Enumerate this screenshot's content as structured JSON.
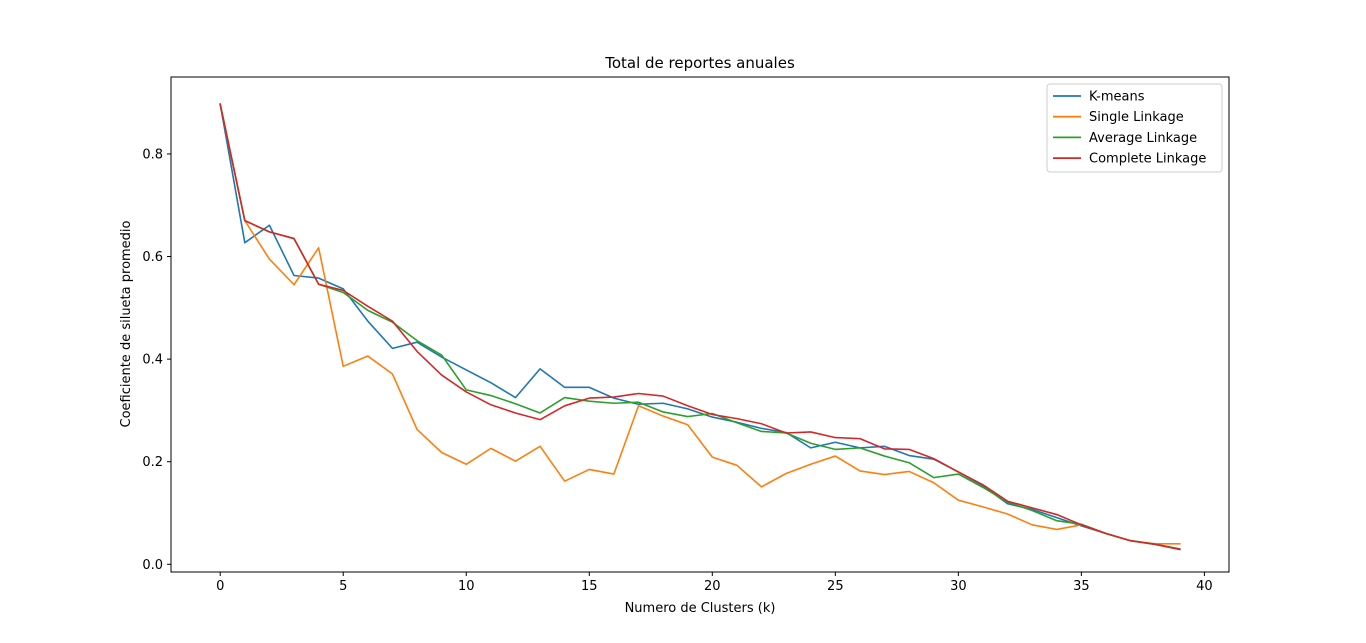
{
  "chart_data": {
    "type": "line",
    "title": "Total de reportes anuales",
    "xlabel": "Numero de Clusters (k)",
    "ylabel": "Coeficiente de silueta promedio",
    "xlim": [
      -2,
      41
    ],
    "ylim": [
      -0.015,
      0.95
    ],
    "xticks": [
      0,
      5,
      10,
      15,
      20,
      25,
      30,
      35,
      40
    ],
    "yticks": [
      0.0,
      0.2,
      0.4,
      0.6,
      0.8
    ],
    "xtick_labels": [
      "0",
      "5",
      "10",
      "15",
      "20",
      "25",
      "30",
      "35",
      "40"
    ],
    "ytick_labels": [
      "0.0",
      "0.2",
      "0.4",
      "0.6",
      "0.8"
    ],
    "legend_position": "top-right",
    "grid": false,
    "x": [
      0,
      1,
      2,
      3,
      4,
      5,
      6,
      7,
      8,
      9,
      10,
      11,
      12,
      13,
      14,
      15,
      16,
      17,
      18,
      19,
      20,
      21,
      22,
      23,
      24,
      25,
      26,
      27,
      28,
      29,
      30,
      31,
      32,
      33,
      34,
      35,
      36,
      37,
      38,
      39
    ],
    "series": [
      {
        "name": "K-means",
        "color": "#1f77b4",
        "values": [
          0.897,
          0.627,
          0.661,
          0.563,
          0.558,
          0.537,
          0.474,
          0.421,
          0.433,
          0.404,
          0.379,
          0.354,
          0.325,
          0.381,
          0.345,
          0.345,
          0.324,
          0.312,
          0.314,
          0.303,
          0.287,
          0.277,
          0.265,
          0.257,
          0.227,
          0.238,
          0.227,
          0.23,
          0.212,
          0.205,
          0.18,
          0.153,
          0.118,
          0.107,
          0.091,
          0.075,
          0.06,
          0.046,
          0.039,
          0.03
        ]
      },
      {
        "name": "Single Linkage",
        "color": "#ff7f0e",
        "values": [
          0.897,
          0.67,
          0.595,
          0.545,
          0.617,
          0.386,
          0.406,
          0.371,
          0.263,
          0.218,
          0.195,
          0.226,
          0.201,
          0.23,
          0.162,
          0.185,
          0.176,
          0.309,
          0.289,
          0.272,
          0.209,
          0.193,
          0.151,
          0.177,
          0.195,
          0.211,
          0.182,
          0.175,
          0.181,
          0.159,
          0.125,
          0.112,
          0.098,
          0.077,
          0.068,
          0.077,
          0.06,
          0.046,
          0.04,
          0.04
        ]
      },
      {
        "name": "Average Linkage",
        "color": "#2ca02c",
        "values": [
          0.897,
          0.67,
          0.648,
          0.635,
          0.546,
          0.53,
          0.495,
          0.472,
          0.436,
          0.408,
          0.34,
          0.329,
          0.313,
          0.295,
          0.325,
          0.318,
          0.314,
          0.316,
          0.297,
          0.288,
          0.294,
          0.276,
          0.259,
          0.256,
          0.236,
          0.224,
          0.227,
          0.211,
          0.198,
          0.169,
          0.176,
          0.15,
          0.121,
          0.105,
          0.085,
          0.078,
          0.06,
          0.046,
          0.039,
          0.029
        ]
      },
      {
        "name": "Complete Linkage",
        "color": "#d62728",
        "values": [
          0.897,
          0.67,
          0.648,
          0.635,
          0.546,
          0.534,
          0.503,
          0.474,
          0.415,
          0.369,
          0.336,
          0.311,
          0.295,
          0.282,
          0.309,
          0.324,
          0.326,
          0.333,
          0.328,
          0.309,
          0.292,
          0.284,
          0.274,
          0.256,
          0.258,
          0.247,
          0.245,
          0.225,
          0.224,
          0.206,
          0.18,
          0.155,
          0.123,
          0.11,
          0.097,
          0.077,
          0.06,
          0.046,
          0.039,
          0.029
        ]
      }
    ]
  }
}
